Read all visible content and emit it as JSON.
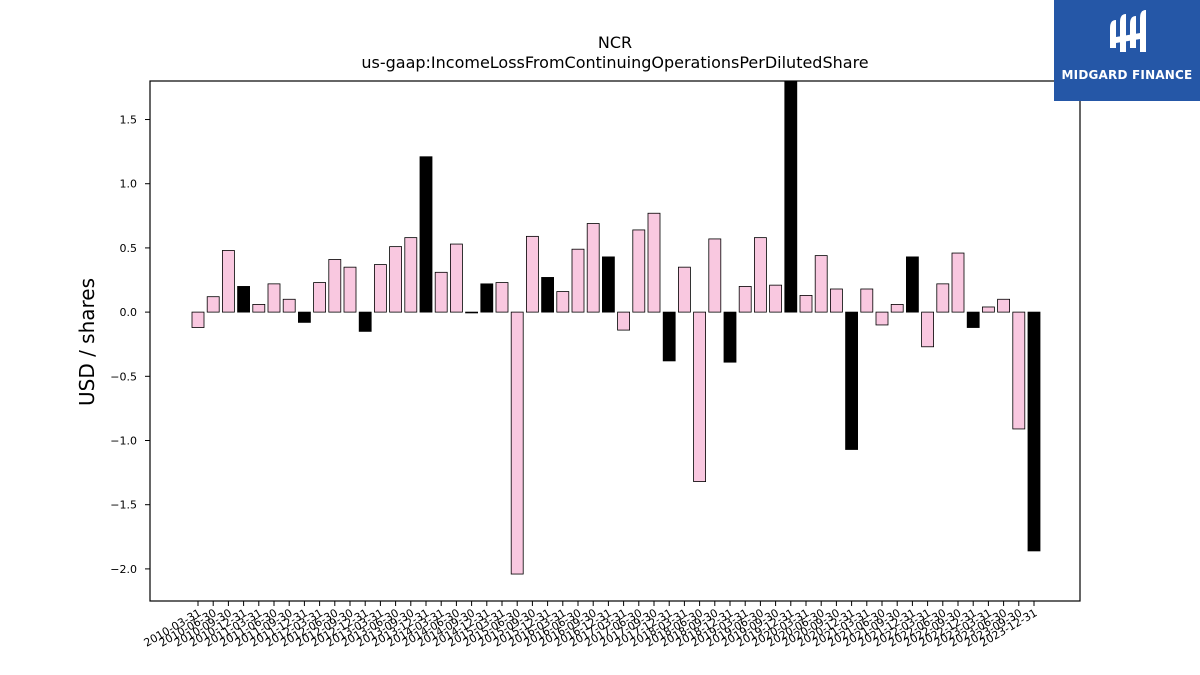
{
  "logo": {
    "text": "MIDGARD FINANCE",
    "bg_color": "#2557a7"
  },
  "chart_data": {
    "type": "bar",
    "title": "NCR",
    "subtitle": "us-gaap:IncomeLossFromContinuingOperationsPerDilutedShare",
    "ylabel": "USD / shares",
    "xlabel": "",
    "ylim": [
      -2.25,
      1.8
    ],
    "yticks": [
      -2.0,
      -1.5,
      -1.0,
      -0.5,
      0.0,
      0.5,
      1.0,
      1.5
    ],
    "grid": false,
    "colors": {
      "quarter": "#f9c8e0",
      "annual": "#000000",
      "edge": "#000000"
    },
    "categories": [
      "2010-03-31",
      "2010-06-30",
      "2010-09-30",
      "2010-12-31",
      "2011-03-31",
      "2011-06-30",
      "2011-09-30",
      "2011-12-31",
      "2012-03-31",
      "2012-06-30",
      "2012-09-30",
      "2012-12-31",
      "2013-03-31",
      "2013-06-30",
      "2013-09-30",
      "2013-12-31",
      "2014-03-31",
      "2014-06-30",
      "2014-09-30",
      "2014-12-31",
      "2015-03-31",
      "2015-06-30",
      "2015-09-30",
      "2015-12-31",
      "2016-03-31",
      "2016-06-30",
      "2016-09-30",
      "2016-12-31",
      "2017-03-31",
      "2017-06-30",
      "2017-09-30",
      "2017-12-31",
      "2018-03-31",
      "2018-06-30",
      "2018-09-30",
      "2018-12-31",
      "2019-03-31",
      "2019-06-30",
      "2019-09-30",
      "2019-12-31",
      "2020-03-31",
      "2020-06-30",
      "2020-09-30",
      "2020-12-31",
      "2021-03-31",
      "2021-06-30",
      "2021-09-30",
      "2021-12-31",
      "2022-03-31",
      "2022-06-30",
      "2022-09-30",
      "2022-12-31",
      "2023-03-31",
      "2023-06-30",
      "2023-09-30",
      "2023-12-31"
    ],
    "values": [
      -0.12,
      0.12,
      0.48,
      0.2,
      0.06,
      0.22,
      0.1,
      -0.08,
      0.23,
      0.41,
      0.35,
      -0.15,
      0.37,
      0.51,
      0.58,
      1.21,
      0.31,
      0.53,
      0.0,
      0.22,
      0.23,
      -2.04,
      0.59,
      0.27,
      0.16,
      0.49,
      0.69,
      0.43,
      -0.14,
      0.64,
      0.77,
      -0.38,
      0.35,
      -1.32,
      0.57,
      -0.39,
      0.2,
      0.58,
      0.21,
      1.85,
      0.13,
      0.44,
      0.18,
      -1.07,
      0.18,
      -0.1,
      0.06,
      0.43,
      -0.27,
      0.22,
      0.46,
      -0.12,
      0.04,
      0.1,
      -0.91,
      -1.86
    ],
    "annual": [
      false,
      false,
      false,
      true,
      false,
      false,
      false,
      true,
      false,
      false,
      false,
      true,
      false,
      false,
      false,
      true,
      false,
      false,
      false,
      true,
      false,
      false,
      false,
      true,
      false,
      false,
      false,
      true,
      false,
      false,
      false,
      true,
      false,
      false,
      false,
      true,
      false,
      false,
      false,
      true,
      false,
      false,
      false,
      true,
      false,
      false,
      false,
      true,
      false,
      false,
      false,
      true,
      false,
      false,
      false,
      true
    ]
  }
}
